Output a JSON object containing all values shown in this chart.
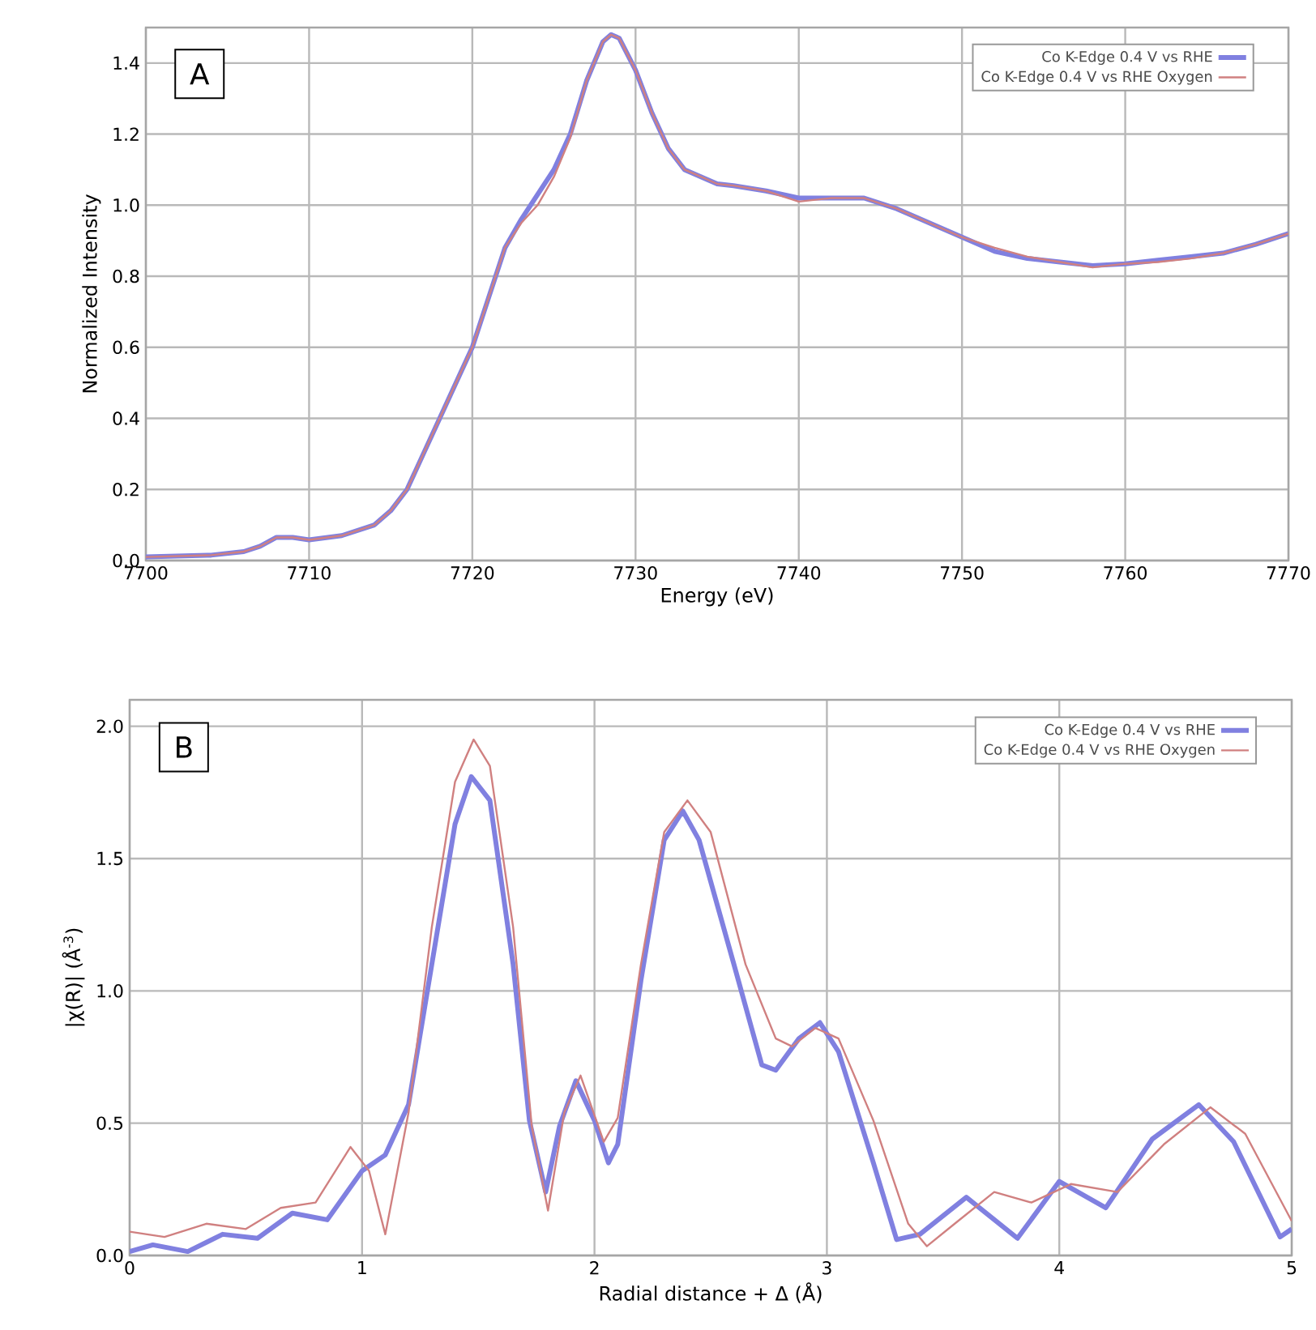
{
  "chart_data": [
    {
      "type": "line",
      "xlabel": "Energy (eV)",
      "ylabel": "Normalized Intensity",
      "annotations": [
        "A"
      ],
      "xlim": [
        7700,
        7770
      ],
      "ylim": [
        0,
        1.5
      ],
      "xticks": [
        7700,
        7710,
        7720,
        7730,
        7740,
        7750,
        7760,
        7770
      ],
      "yticks": [
        {
          "value": 0,
          "label": "0.0"
        },
        {
          "value": 0.2,
          "label": "0.2"
        },
        {
          "value": 0.4,
          "label": "0.4"
        },
        {
          "value": 0.6,
          "label": "0.6"
        },
        {
          "value": 0.8,
          "label": "0.8"
        },
        {
          "value": 1.0,
          "label": "1.0"
        },
        {
          "value": 1.2,
          "label": "1.2"
        },
        {
          "value": 1.4,
          "label": "1.4"
        }
      ],
      "grid": true,
      "legend": "top right",
      "series": [
        {
          "name": "Co K-Edge  0.4 V vs RHE",
          "color": "#8080e0",
          "x": [
            7700,
            7704,
            7706,
            7707,
            7708,
            7709,
            7710,
            7712,
            7714,
            7715,
            7716,
            7717,
            7718,
            7719,
            7720,
            7721,
            7722,
            7723,
            7724,
            7725,
            7726,
            7727,
            7728,
            7728.5,
            7729,
            7730,
            7731,
            7732,
            7733,
            7734,
            7735,
            7736,
            7738,
            7740,
            7742,
            7744,
            7746,
            7748,
            7750,
            7752,
            7754,
            7756,
            7758,
            7760,
            7762,
            7764,
            7766,
            7768,
            7770
          ],
          "values": [
            0.01,
            0.015,
            0.025,
            0.04,
            0.065,
            0.065,
            0.058,
            0.07,
            0.1,
            0.14,
            0.2,
            0.3,
            0.4,
            0.5,
            0.6,
            0.74,
            0.88,
            0.96,
            1.03,
            1.1,
            1.2,
            1.35,
            1.46,
            1.48,
            1.47,
            1.38,
            1.26,
            1.16,
            1.1,
            1.08,
            1.06,
            1.055,
            1.04,
            1.02,
            1.02,
            1.02,
            0.99,
            0.95,
            0.91,
            0.87,
            0.85,
            0.84,
            0.83,
            0.835,
            0.845,
            0.855,
            0.865,
            0.89,
            0.92
          ]
        },
        {
          "name": "Co K-Edge  0.4 V vs RHE Oxygen",
          "color": "#d08080",
          "x": [
            7700,
            7704,
            7706,
            7707,
            7708,
            7709,
            7710,
            7712,
            7714,
            7715,
            7716,
            7717,
            7718,
            7719,
            7720,
            7721,
            7722,
            7723,
            7724,
            7725,
            7726,
            7727,
            7728,
            7728.5,
            7729,
            7730,
            7731,
            7732,
            7733,
            7734,
            7735,
            7736,
            7738,
            7740,
            7742,
            7744,
            7746,
            7748,
            7750,
            7752,
            7754,
            7756,
            7758,
            7760,
            7762,
            7764,
            7766,
            7768,
            7770
          ],
          "values": [
            0.01,
            0.015,
            0.025,
            0.04,
            0.065,
            0.065,
            0.058,
            0.07,
            0.1,
            0.14,
            0.2,
            0.3,
            0.4,
            0.5,
            0.6,
            0.74,
            0.88,
            0.95,
            1.0,
            1.08,
            1.19,
            1.35,
            1.46,
            1.48,
            1.47,
            1.38,
            1.26,
            1.16,
            1.1,
            1.08,
            1.06,
            1.055,
            1.04,
            1.01,
            1.02,
            1.02,
            0.99,
            0.95,
            0.91,
            0.88,
            0.855,
            0.84,
            0.825,
            0.835,
            0.84,
            0.85,
            0.865,
            0.89,
            0.92
          ]
        }
      ]
    },
    {
      "type": "line",
      "xlabel": "Radial distance + Δ (Å)",
      "ylabel": "|χ(R)| (Å$^{-3}$)",
      "annotations": [
        "B"
      ],
      "xlim": [
        0,
        5
      ],
      "ylim": [
        0,
        2.1
      ],
      "xticks": [
        0,
        1,
        2,
        3,
        4,
        5
      ],
      "yticks": [
        {
          "value": 0,
          "label": "0.0"
        },
        {
          "value": 0.5,
          "label": "0.5"
        },
        {
          "value": 1.0,
          "label": "1.0"
        },
        {
          "value": 1.5,
          "label": "1.5"
        },
        {
          "value": 2.0,
          "label": "2.0"
        }
      ],
      "grid": true,
      "legend": "top right",
      "series": [
        {
          "name": "Co K-Edge  0.4 V vs RHE",
          "color": "#8080e0",
          "x": [
            0,
            0.1,
            0.25,
            0.4,
            0.55,
            0.7,
            0.85,
            1.0,
            1.1,
            1.2,
            1.3,
            1.4,
            1.47,
            1.55,
            1.65,
            1.72,
            1.79,
            1.85,
            1.92,
            2.0,
            2.06,
            2.1,
            2.2,
            2.3,
            2.38,
            2.45,
            2.6,
            2.72,
            2.78,
            2.88,
            2.97,
            3.05,
            3.2,
            3.3,
            3.4,
            3.6,
            3.82,
            4.0,
            4.2,
            4.4,
            4.6,
            4.75,
            4.95,
            5.0
          ],
          "values": [
            0.015,
            0.04,
            0.015,
            0.08,
            0.065,
            0.16,
            0.135,
            0.32,
            0.38,
            0.57,
            1.1,
            1.63,
            1.81,
            1.72,
            1.1,
            0.51,
            0.24,
            0.49,
            0.66,
            0.51,
            0.35,
            0.42,
            1.04,
            1.57,
            1.68,
            1.57,
            1.1,
            0.72,
            0.7,
            0.82,
            0.88,
            0.77,
            0.35,
            0.06,
            0.08,
            0.22,
            0.065,
            0.28,
            0.18,
            0.44,
            0.57,
            0.43,
            0.07,
            0.1
          ]
        },
        {
          "name": "Co K-Edge  0.4 V vs RHE Oxygen",
          "color": "#d08080",
          "x": [
            0,
            0.15,
            0.33,
            0.5,
            0.65,
            0.8,
            0.95,
            1.03,
            1.1,
            1.2,
            1.3,
            1.4,
            1.48,
            1.55,
            1.65,
            1.73,
            1.8,
            1.87,
            1.94,
            2.04,
            2.1,
            2.2,
            2.3,
            2.4,
            2.5,
            2.65,
            2.78,
            2.85,
            2.95,
            3.05,
            3.2,
            3.35,
            3.43,
            3.55,
            3.72,
            3.88,
            4.05,
            4.25,
            4.45,
            4.65,
            4.8,
            5.0
          ],
          "values": [
            0.09,
            0.07,
            0.12,
            0.1,
            0.18,
            0.2,
            0.41,
            0.32,
            0.08,
            0.54,
            1.24,
            1.79,
            1.95,
            1.85,
            1.24,
            0.49,
            0.17,
            0.54,
            0.68,
            0.43,
            0.52,
            1.1,
            1.6,
            1.72,
            1.6,
            1.1,
            0.82,
            0.79,
            0.86,
            0.82,
            0.51,
            0.12,
            0.035,
            0.12,
            0.24,
            0.2,
            0.27,
            0.24,
            0.42,
            0.56,
            0.46,
            0.13
          ]
        }
      ]
    }
  ]
}
